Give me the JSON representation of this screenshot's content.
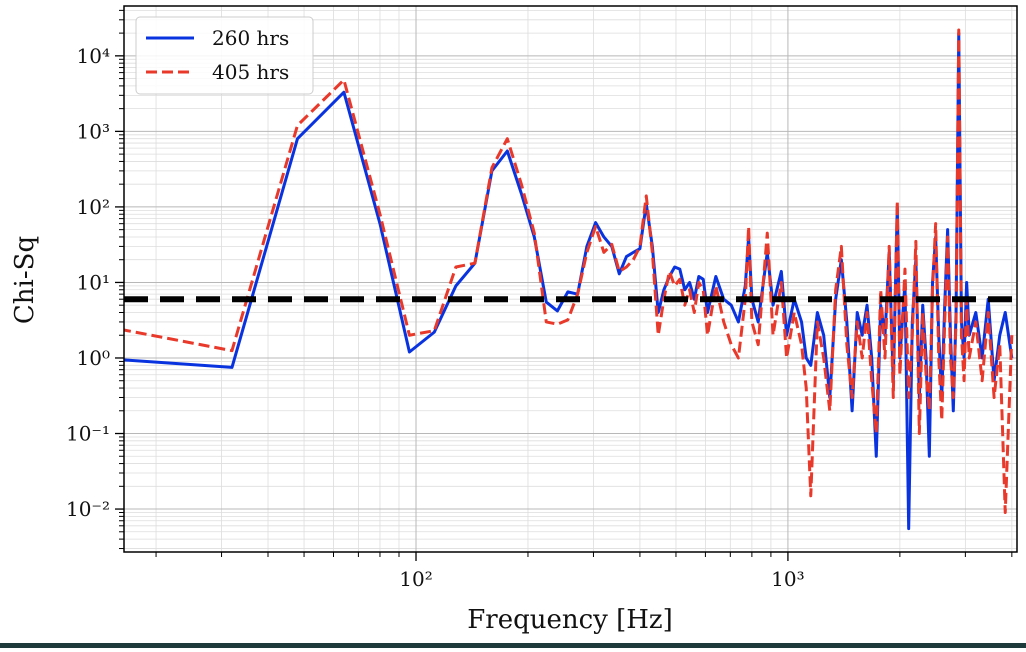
{
  "chart_data": {
    "type": "line",
    "xlabel": "Frequency [Hz]",
    "ylabel": "Chi-Sq",
    "xscale": "log",
    "yscale": "log",
    "grid": true,
    "legend": "upper left",
    "xlim": [
      16.4,
      4130
    ],
    "ylim": [
      0.0027,
      45700
    ],
    "xticks": [
      {
        "value": 100,
        "label": "10²"
      },
      {
        "value": 1000,
        "label": "10³"
      }
    ],
    "yticks": [
      {
        "value": 0.01,
        "label": "10⁻²"
      },
      {
        "value": 0.1,
        "label": "10⁻¹"
      },
      {
        "value": 1,
        "label": "10⁰"
      },
      {
        "value": 10,
        "label": "10¹"
      },
      {
        "value": 100,
        "label": "10²"
      },
      {
        "value": 1000,
        "label": "10³"
      },
      {
        "value": 10000,
        "label": "10⁴"
      }
    ],
    "hline": {
      "value": 6,
      "color": "#000000"
    },
    "x": [
      16,
      32,
      48,
      64,
      80,
      96,
      112,
      128,
      144,
      160,
      176,
      192,
      208,
      224,
      240,
      256,
      272,
      288,
      304,
      320,
      336,
      352,
      368,
      384,
      400,
      416,
      432,
      448,
      464,
      480,
      496,
      512,
      528,
      544,
      560,
      576,
      592,
      608,
      640,
      672,
      704,
      736,
      768,
      784,
      800,
      832,
      880,
      912,
      960,
      992,
      1040,
      1088,
      1120,
      1152,
      1200,
      1248,
      1296,
      1344,
      1392,
      1440,
      1488,
      1536,
      1584,
      1632,
      1680,
      1728,
      1776,
      1824,
      1872,
      1920,
      1968,
      2000,
      2064,
      2112,
      2160,
      2208,
      2256,
      2304,
      2352,
      2400,
      2448,
      2496,
      2544,
      2592,
      2640,
      2688,
      2736,
      2784,
      2832,
      2880,
      2928,
      2976,
      3024,
      3072,
      3200,
      3328,
      3456,
      3584,
      3712,
      3840,
      4000
    ],
    "series": [
      {
        "name": "260 hrs",
        "color": "#0a33e0",
        "dash": "solid",
        "values": [
          0.95,
          0.75,
          800,
          3300,
          60,
          1.2,
          2.2,
          9,
          18,
          300,
          550,
          150,
          40,
          5.5,
          4.2,
          7.5,
          7,
          30,
          62,
          40,
          30,
          13,
          22,
          25,
          28,
          110,
          30,
          4,
          8,
          12,
          16,
          15,
          8,
          10,
          6,
          12,
          11,
          4,
          12,
          6,
          5,
          3,
          9,
          40,
          6,
          3,
          25,
          5,
          14,
          2,
          6,
          3,
          1,
          0.8,
          4,
          2,
          0.3,
          6,
          20,
          3,
          0.2,
          4,
          2,
          5,
          1,
          0.05,
          5,
          2,
          25,
          0.5,
          100,
          1,
          10,
          0.0055,
          3,
          20,
          0.3,
          5,
          1,
          0.05,
          10,
          40,
          2,
          0.3,
          5,
          50,
          2,
          0.2,
          4,
          20000,
          3,
          1,
          10,
          2,
          4,
          1,
          6,
          0.5,
          2,
          4,
          1
        ]
      },
      {
        "name": "405 hrs",
        "color": "#e8392b",
        "dash": "dashed",
        "values": [
          2.4,
          1.25,
          1200,
          4800,
          80,
          2.0,
          2.3,
          16,
          18,
          330,
          800,
          200,
          45,
          3,
          2.8,
          3.2,
          7,
          25,
          55,
          25,
          32,
          14,
          16,
          20,
          30,
          140,
          25,
          2,
          6,
          14,
          9,
          11,
          5,
          8,
          4,
          10,
          8,
          2,
          9,
          3,
          1.5,
          1,
          6,
          55,
          3,
          1.5,
          45,
          2,
          10,
          1,
          4,
          1.5,
          0.4,
          0.015,
          3,
          1,
          0.2,
          8,
          30,
          1.5,
          0.3,
          3,
          1,
          4,
          0.5,
          0.1,
          8,
          1,
          30,
          0.3,
          120,
          0.6,
          15,
          0.3,
          2,
          35,
          0.1,
          4,
          0.6,
          0.2,
          8,
          60,
          1,
          0.15,
          3,
          40,
          1,
          0.3,
          3,
          22000,
          2,
          0.5,
          6,
          1,
          3,
          0.5,
          4,
          0.3,
          1.5,
          0.009,
          2
        ]
      }
    ]
  }
}
